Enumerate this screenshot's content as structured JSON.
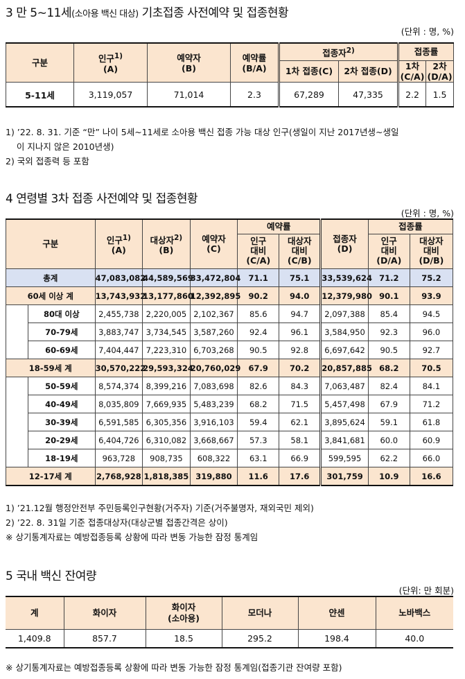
{
  "section3": {
    "title": "3 만 5~11세",
    "title_small": "(소아용 백신 대상)",
    "title_rest": " 기초접종 사전예약 및 접종현황",
    "unit": "(단위 : 명, %)",
    "headers": {
      "category": "구분",
      "population": "인구",
      "population_sup": "1)",
      "population_code": "(A)",
      "reservations": "예약자",
      "reservations_code": "(B)",
      "rate": "예약률",
      "rate_code": "(B/A)",
      "vaccinated": "접종자",
      "vaccinated_sup": "2)",
      "dose1": "1차 접종(C)",
      "dose2": "2차 접종(D)",
      "vac_rate": "접종률",
      "rate1": "1차",
      "rate1_code": "(C/A)",
      "rate2": "2차",
      "rate2_code": "(D/A)"
    },
    "row": {
      "label": "5-11세",
      "population": "3,119,057",
      "reservations": "71,014",
      "rate": "2.3",
      "dose1": "67,289",
      "dose2": "47,335",
      "rate1": "2.2",
      "rate2": "1.5"
    },
    "notes": [
      "1) ’22. 8. 31. 기준 “만” 나이 5세~11세로 소아용 백신 접종 가능 대상 인구(생일이 지난 2017년생~생일",
      "    이 지나지 않은 2010년생)",
      "2) 국외 접종력 등 포함"
    ]
  },
  "section4": {
    "title": "4  연령별 3차 접종 사전예약 및 접종현황",
    "unit": "(단위 : 명, %)",
    "headers": {
      "category": "구분",
      "population": "인구",
      "population_sup": "1)",
      "population_code": "(A)",
      "target": "대상자",
      "target_sup": "2)",
      "target_code": "(B)",
      "reservations": "예약자",
      "reservations_code": "(C)",
      "res_rate": "예약률",
      "pop_ratio": "인구",
      "pop_ratio2": "대비",
      "pop_ratio_code": "(C/A)",
      "tgt_ratio": "대상자",
      "tgt_ratio2": "대비",
      "tgt_ratio_code": "(C/B)",
      "vaccinated": "접종자",
      "vaccinated_code": "(D)",
      "vac_rate": "접종률",
      "vpop_ratio": "인구",
      "vpop_ratio2": "대비",
      "vpop_ratio_code": "(D/A)",
      "vtgt_ratio": "대상자",
      "vtgt_ratio2": "대비",
      "vtgt_ratio_code": "(D/B)"
    },
    "rows": [
      {
        "label": "총계",
        "pop": "47,083,082",
        "tgt": "44,589,569",
        "res": "33,472,804",
        "r1": "71.1",
        "r2": "75.1",
        "vac": "33,539,624",
        "v1": "71.2",
        "v2": "75.2",
        "kind": "total"
      },
      {
        "label": "60세 이상 계",
        "pop": "13,743,932",
        "tgt": "13,177,860",
        "res": "12,392,895",
        "r1": "90.2",
        "r2": "94.0",
        "vac": "12,379,980",
        "v1": "90.1",
        "v2": "93.9",
        "kind": "group"
      },
      {
        "label": "80대 이상",
        "pop": "2,455,738",
        "tgt": "2,220,005",
        "res": "2,102,367",
        "r1": "85.6",
        "r2": "94.7",
        "vac": "2,097,388",
        "v1": "85.4",
        "v2": "94.5",
        "kind": "sub"
      },
      {
        "label": "70-79세",
        "pop": "3,883,747",
        "tgt": "3,734,545",
        "res": "3,587,260",
        "r1": "92.4",
        "r2": "96.1",
        "vac": "3,584,950",
        "v1": "92.3",
        "v2": "96.0",
        "kind": "sub"
      },
      {
        "label": "60-69세",
        "pop": "7,404,447",
        "tgt": "7,223,310",
        "res": "6,703,268",
        "r1": "90.5",
        "r2": "92.8",
        "vac": "6,697,642",
        "v1": "90.5",
        "v2": "92.7",
        "kind": "sub"
      },
      {
        "label": "18-59세 계",
        "pop": "30,570,222",
        "tgt": "29,593,324",
        "res": "20,760,029",
        "r1": "67.9",
        "r2": "70.2",
        "vac": "20,857,885",
        "v1": "68.2",
        "v2": "70.5",
        "kind": "group"
      },
      {
        "label": "50-59세",
        "pop": "8,574,374",
        "tgt": "8,399,216",
        "res": "7,083,698",
        "r1": "82.6",
        "r2": "84.3",
        "vac": "7,063,487",
        "v1": "82.4",
        "v2": "84.1",
        "kind": "sub"
      },
      {
        "label": "40-49세",
        "pop": "8,035,809",
        "tgt": "7,669,935",
        "res": "5,483,239",
        "r1": "68.2",
        "r2": "71.5",
        "vac": "5,457,498",
        "v1": "67.9",
        "v2": "71.2",
        "kind": "sub"
      },
      {
        "label": "30-39세",
        "pop": "6,591,585",
        "tgt": "6,305,356",
        "res": "3,916,103",
        "r1": "59.4",
        "r2": "62.1",
        "vac": "3,895,624",
        "v1": "59.1",
        "v2": "61.8",
        "kind": "sub"
      },
      {
        "label": "20-29세",
        "pop": "6,404,726",
        "tgt": "6,310,082",
        "res": "3,668,667",
        "r1": "57.3",
        "r2": "58.1",
        "vac": "3,841,681",
        "v1": "60.0",
        "v2": "60.9",
        "kind": "sub"
      },
      {
        "label": "18-19세",
        "pop": "963,728",
        "tgt": "908,735",
        "res": "608,322",
        "r1": "63.1",
        "r2": "66.9",
        "vac": "599,595",
        "v1": "62.2",
        "v2": "66.0",
        "kind": "sub"
      },
      {
        "label": "12-17세 계",
        "pop": "2,768,928",
        "tgt": "1,818,385",
        "res": "319,880",
        "r1": "11.6",
        "r2": "17.6",
        "vac": "301,759",
        "v1": "10.9",
        "v2": "16.6",
        "kind": "group"
      }
    ],
    "notes": [
      "1) ’21.12월 행정안전부 주민등록인구현황(거주자) 기준(거주불명자, 재외국민 제외)",
      "2) ’22. 8. 31일 기준 접종대상자(대상군별 접종간격은 상이)",
      "※ 상기통계자료는 예방접종등록 상황에 따라 변동 가능한 잠정 통계임"
    ]
  },
  "section5": {
    "title": "5  국내 백신 잔여량",
    "unit": "(단위: 만 회분)",
    "headers": [
      "계",
      "화이자",
      "화이자",
      "(소아용)",
      "모더나",
      "얀센",
      "노바백스"
    ],
    "values": [
      "1,409.8",
      "857.7",
      "18.5",
      "295.2",
      "198.4",
      "40.0"
    ],
    "note": "※ 상기통계자료는 예방접종등록 상황에 따라 변동 가능한 잠정 통계임(접종기관 잔여량 포함)"
  }
}
